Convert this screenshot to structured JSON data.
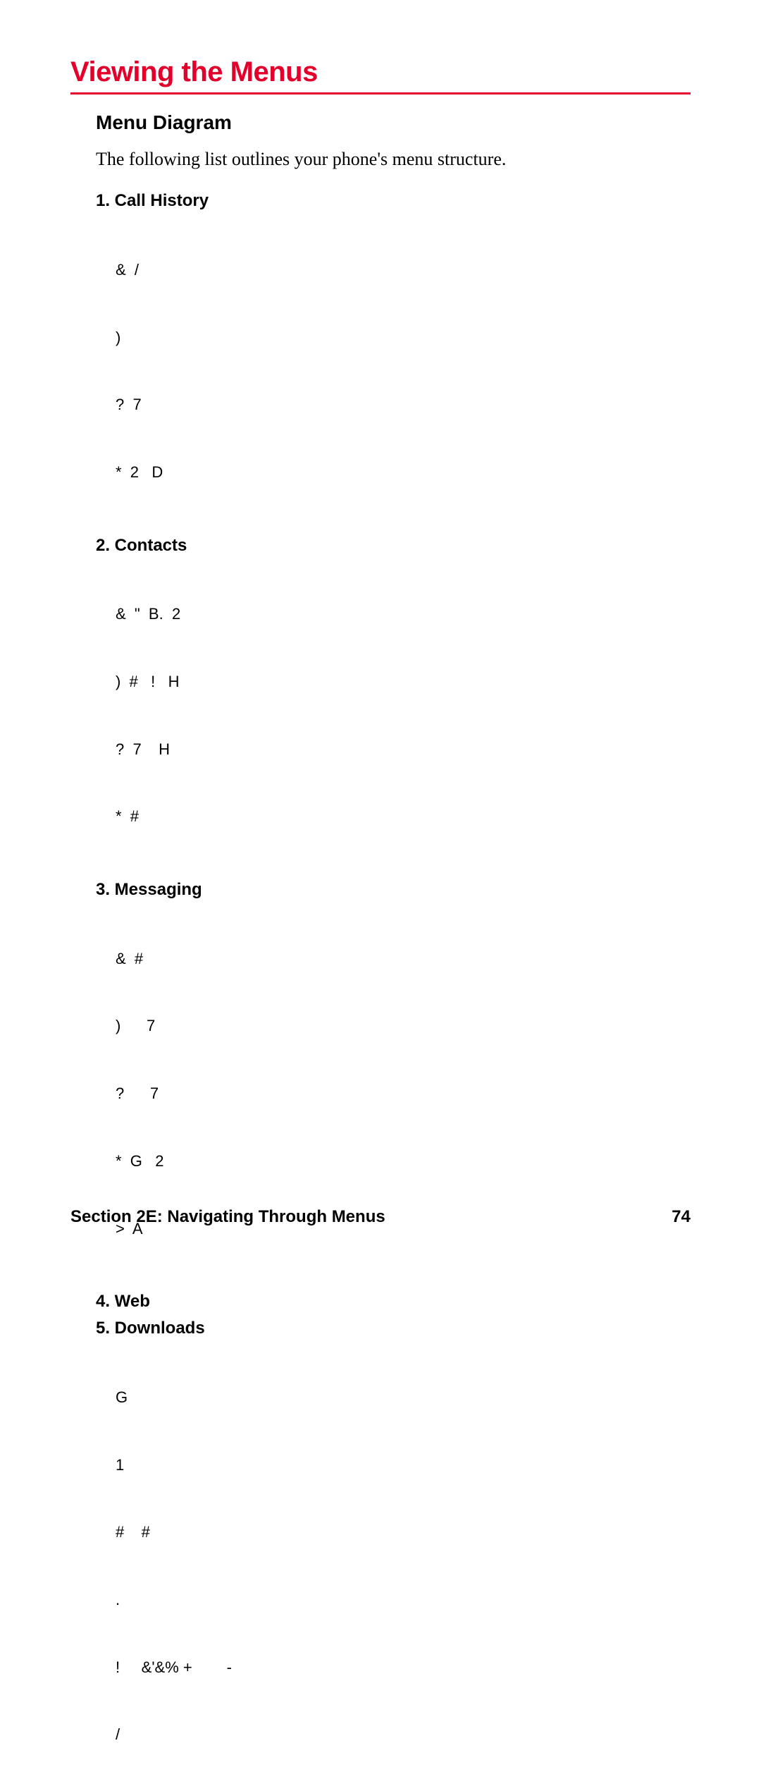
{
  "title": "Viewing the Menus",
  "subtitle": "Menu Diagram",
  "intro": "The following list outlines your phone's menu structure.",
  "colors": {
    "accent": "#e3002b",
    "text": "#000000",
    "background": "#ffffff"
  },
  "menus": [
    {
      "header": "1. Call History",
      "items": [
        "&  /",
        ")",
        "?  7",
        "*  2   D"
      ]
    },
    {
      "header": "2. Contacts",
      "items": [
        "&  \"  B.  2",
        ")  #   !   H",
        "?  7    H",
        "*  #"
      ]
    },
    {
      "header": "3. Messaging",
      "items": [
        "&  #",
        ")      7",
        "?      7",
        "*  G   2",
        ">  A"
      ]
    },
    {
      "header": "4. Web",
      "items": []
    },
    {
      "header": "5. Downloads",
      "items": [
        "G",
        "1",
        "#    #",
        ".",
        "!     &'&% +        -",
        "/"
      ]
    }
  ],
  "footer": {
    "section": "Section 2E: Navigating Through Menus",
    "page": "74"
  }
}
